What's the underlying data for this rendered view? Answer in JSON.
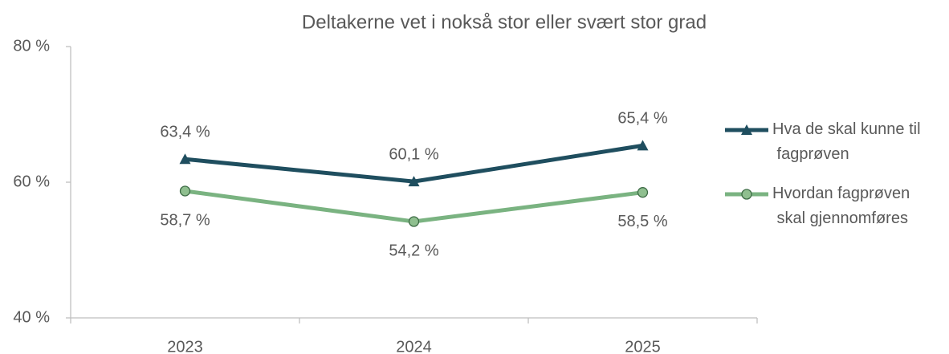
{
  "chart_data": {
    "type": "line",
    "title": "Deltakerne vet i nokså stor eller svært stor grad",
    "categories": [
      "2023",
      "2024",
      "2025"
    ],
    "series": [
      {
        "name": "Hva de skal kunne til fagprøven",
        "color": "#1f4e5f",
        "marker": "triangle",
        "values": [
          63.4,
          60.1,
          65.4
        ],
        "value_labels": [
          "63,4 %",
          "60,1 %",
          "65,4 %"
        ]
      },
      {
        "name": "Hvordan fagprøven skal gjennomføres",
        "color": "#7ab381",
        "marker": "circle",
        "values": [
          58.7,
          54.2,
          58.5
        ],
        "value_labels": [
          "58,7 %",
          "54,2 %",
          "58,5 %"
        ]
      }
    ],
    "ylim": [
      40,
      80
    ],
    "yticks": [
      {
        "value": 40,
        "label": "40 %"
      },
      {
        "value": 60,
        "label": "60 %"
      },
      {
        "value": 80,
        "label": "80 %"
      }
    ],
    "legend": "right"
  }
}
